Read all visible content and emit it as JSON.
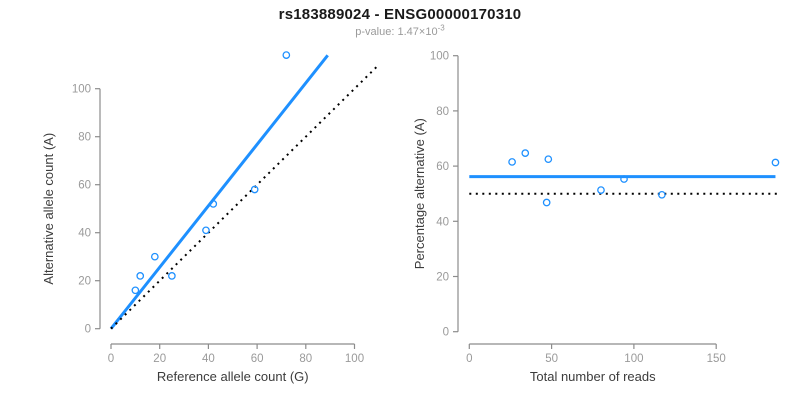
{
  "header": {
    "title": "rs183889024 - ENSG00000170310",
    "p_value": {
      "label": "p-value: ",
      "mantissa": "1.47",
      "times": "×10",
      "exponent": "-3"
    }
  },
  "colors": {
    "blue": "#1E90FF",
    "black": "#000000",
    "axis": "#8c8c8c",
    "tick_label": "#9a9a9a",
    "axis_title": "#3c3c3c",
    "title": "#1a1a1a",
    "subtitle": "#9a9a9a"
  },
  "chart_data": [
    {
      "type": "scatter",
      "panel": "left",
      "title": "",
      "xlabel": "Reference allele count (G)",
      "ylabel": "Alternative allele count (A)",
      "x_ticks": [
        0,
        20,
        40,
        60,
        80,
        100
      ],
      "y_ticks": [
        0,
        20,
        40,
        60,
        80,
        100
      ],
      "xlim": [
        0,
        113
      ],
      "ylim": [
        0,
        117
      ],
      "grid": false,
      "legend": "none",
      "points": [
        [
          10,
          16
        ],
        [
          12,
          22
        ],
        [
          18,
          30
        ],
        [
          25,
          22
        ],
        [
          39,
          41
        ],
        [
          42,
          52
        ],
        [
          59,
          58
        ],
        [
          72,
          114
        ]
      ],
      "lines": [
        {
          "name": "fit-line",
          "style": "solid",
          "color": "blue",
          "x1": 0,
          "y1": 0,
          "x2": 89,
          "y2": 113.9
        },
        {
          "name": "identity-line",
          "style": "dotted",
          "color": "black",
          "x1": 0,
          "y1": 0,
          "x2": 110,
          "y2": 110
        }
      ]
    },
    {
      "type": "scatter",
      "panel": "right",
      "title": "",
      "xlabel": "Total number of reads",
      "ylabel": "Percentage alternative (A)",
      "x_ticks": [
        0,
        50,
        100,
        150
      ],
      "y_ticks": [
        0,
        20,
        40,
        60,
        80,
        100
      ],
      "xlim": [
        0,
        190
      ],
      "ylim": [
        0,
        100
      ],
      "grid": false,
      "legend": "none",
      "points": [
        [
          26,
          61.5
        ],
        [
          34,
          64.7
        ],
        [
          48,
          62.5
        ],
        [
          47,
          46.8
        ],
        [
          80,
          51.3
        ],
        [
          94,
          55.3
        ],
        [
          117,
          49.6
        ],
        [
          186,
          61.3
        ]
      ],
      "lines": [
        {
          "name": "mean-percentage-line",
          "style": "solid",
          "color": "blue",
          "x1": 0,
          "y1": 56.2,
          "x2": 186,
          "y2": 56.2
        },
        {
          "name": "fifty-percent-line",
          "style": "dotted",
          "color": "black",
          "x1": 0,
          "y1": 50,
          "x2": 188,
          "y2": 50
        }
      ]
    }
  ]
}
